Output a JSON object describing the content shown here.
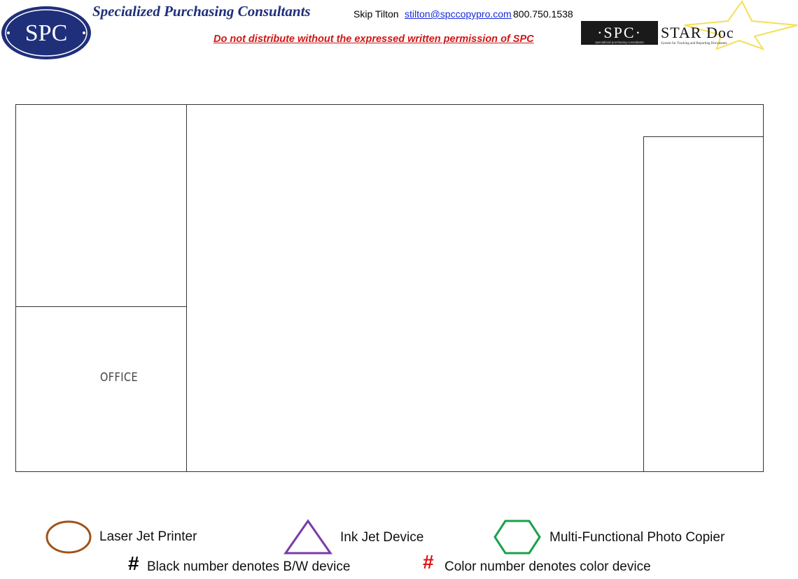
{
  "header": {
    "logo_text": "SPC",
    "company_name": "Specialized Purchasing Consultants",
    "contact_name": "Skip Tilton",
    "contact_email": "stilton@spccopypro.com",
    "contact_phone": "800.750.1538",
    "disclaimer": "Do not distribute without the expressed written permission of SPC",
    "stardoc_logo": {
      "spc": "·SPC·",
      "product": "STAR Doc",
      "spc_tagline": "specialized purchasing consultants",
      "product_tagline": "System for Tracking and Reporting Documents"
    }
  },
  "floor_plan": {
    "office_label": "OFFICE"
  },
  "legend": {
    "laser_jet": "Laser Jet Printer",
    "ink_jet": "Ink Jet Device",
    "mfp": "Multi-Functional Photo Copier",
    "bw_mark": "#",
    "bw_label": "Black number denotes B/W device",
    "color_mark": "#",
    "color_label": "Color number denotes color device"
  },
  "colors": {
    "brand_navy": "#1f2f7a",
    "disclaimer_red": "#d01616",
    "laser_brown": "#a0521c",
    "inkjet_purple": "#7a3aa8",
    "mfp_green": "#1aa04a",
    "star_yellow": "#f2e05a"
  }
}
